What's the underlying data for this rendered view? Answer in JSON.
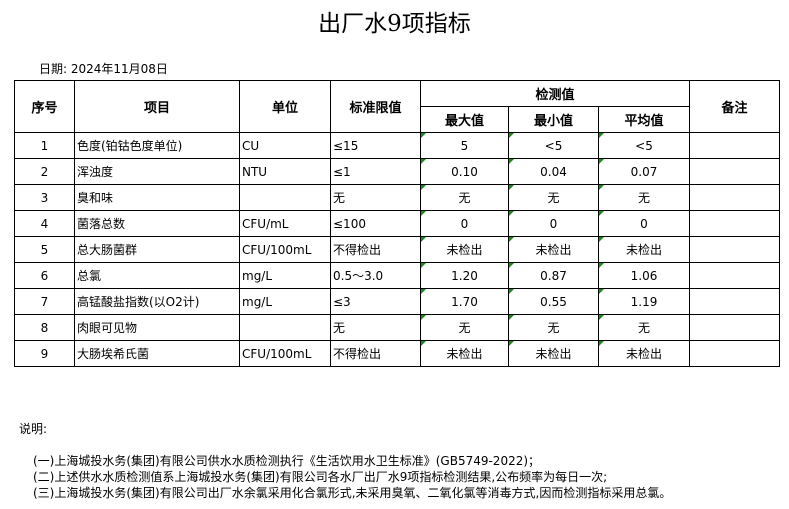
{
  "title": "出厂水9项指标",
  "date": "日期: 2024年11月08日",
  "headers": {
    "no": "序号",
    "item": "项目",
    "unit": "单位",
    "limit": "标准限值",
    "measured": "检测值",
    "max": "最大值",
    "min": "最小值",
    "avg": "平均值",
    "remark": "备注"
  },
  "rows": [
    {
      "no": "1",
      "item": "色度(铂钴色度单位)",
      "unit": "CU",
      "limit": "≤15",
      "max": "5",
      "min": "<5",
      "avg": "<5"
    },
    {
      "no": "2",
      "item": "浑浊度",
      "unit": "NTU",
      "limit": "≤1",
      "max": "0.10",
      "min": "0.04",
      "avg": "0.07"
    },
    {
      "no": "3",
      "item": "臭和味",
      "unit": "",
      "limit": "无",
      "max": "无",
      "min": "无",
      "avg": "无"
    },
    {
      "no": "4",
      "item": "菌落总数",
      "unit": "CFU/mL",
      "limit": "≤100",
      "max": "0",
      "min": "0",
      "avg": "0"
    },
    {
      "no": "5",
      "item": "总大肠菌群",
      "unit": "CFU/100mL",
      "limit": "不得检出",
      "max": "未检出",
      "min": "未检出",
      "avg": "未检出"
    },
    {
      "no": "6",
      "item": "总氯",
      "unit": "mg/L",
      "limit": "0.5～3.0",
      "max": "1.20",
      "min": "0.87",
      "avg": "1.06"
    },
    {
      "no": "7",
      "item": "高锰酸盐指数(以O2计)",
      "unit": "mg/L",
      "limit": "≤3",
      "max": "1.70",
      "min": "0.55",
      "avg": "1.19"
    },
    {
      "no": "8",
      "item": "肉眼可见物",
      "unit": "",
      "limit": "无",
      "max": "无",
      "min": "无",
      "avg": "无"
    },
    {
      "no": "9",
      "item": "大肠埃希氏菌",
      "unit": "CFU/100mL",
      "limit": "不得检出",
      "max": "未检出",
      "min": "未检出",
      "avg": "未检出"
    }
  ],
  "notes": {
    "label": "说明:",
    "lines": [
      "(一)上海城投水务(集团)有限公司供水水质检测执行《生活饮用水卫生标准》(GB5749-2022)；",
      "(二)上述供水水质检测值系上海城投水务(集团)有限公司各水厂出厂水9项指标检测结果,公布频率为每日一次;",
      "(三)上海城投水务(集团)有限公司出厂水余氯采用化合氯形式,未采用臭氧、二氧化氯等消毒方式,因而检测指标采用总氯。"
    ]
  }
}
